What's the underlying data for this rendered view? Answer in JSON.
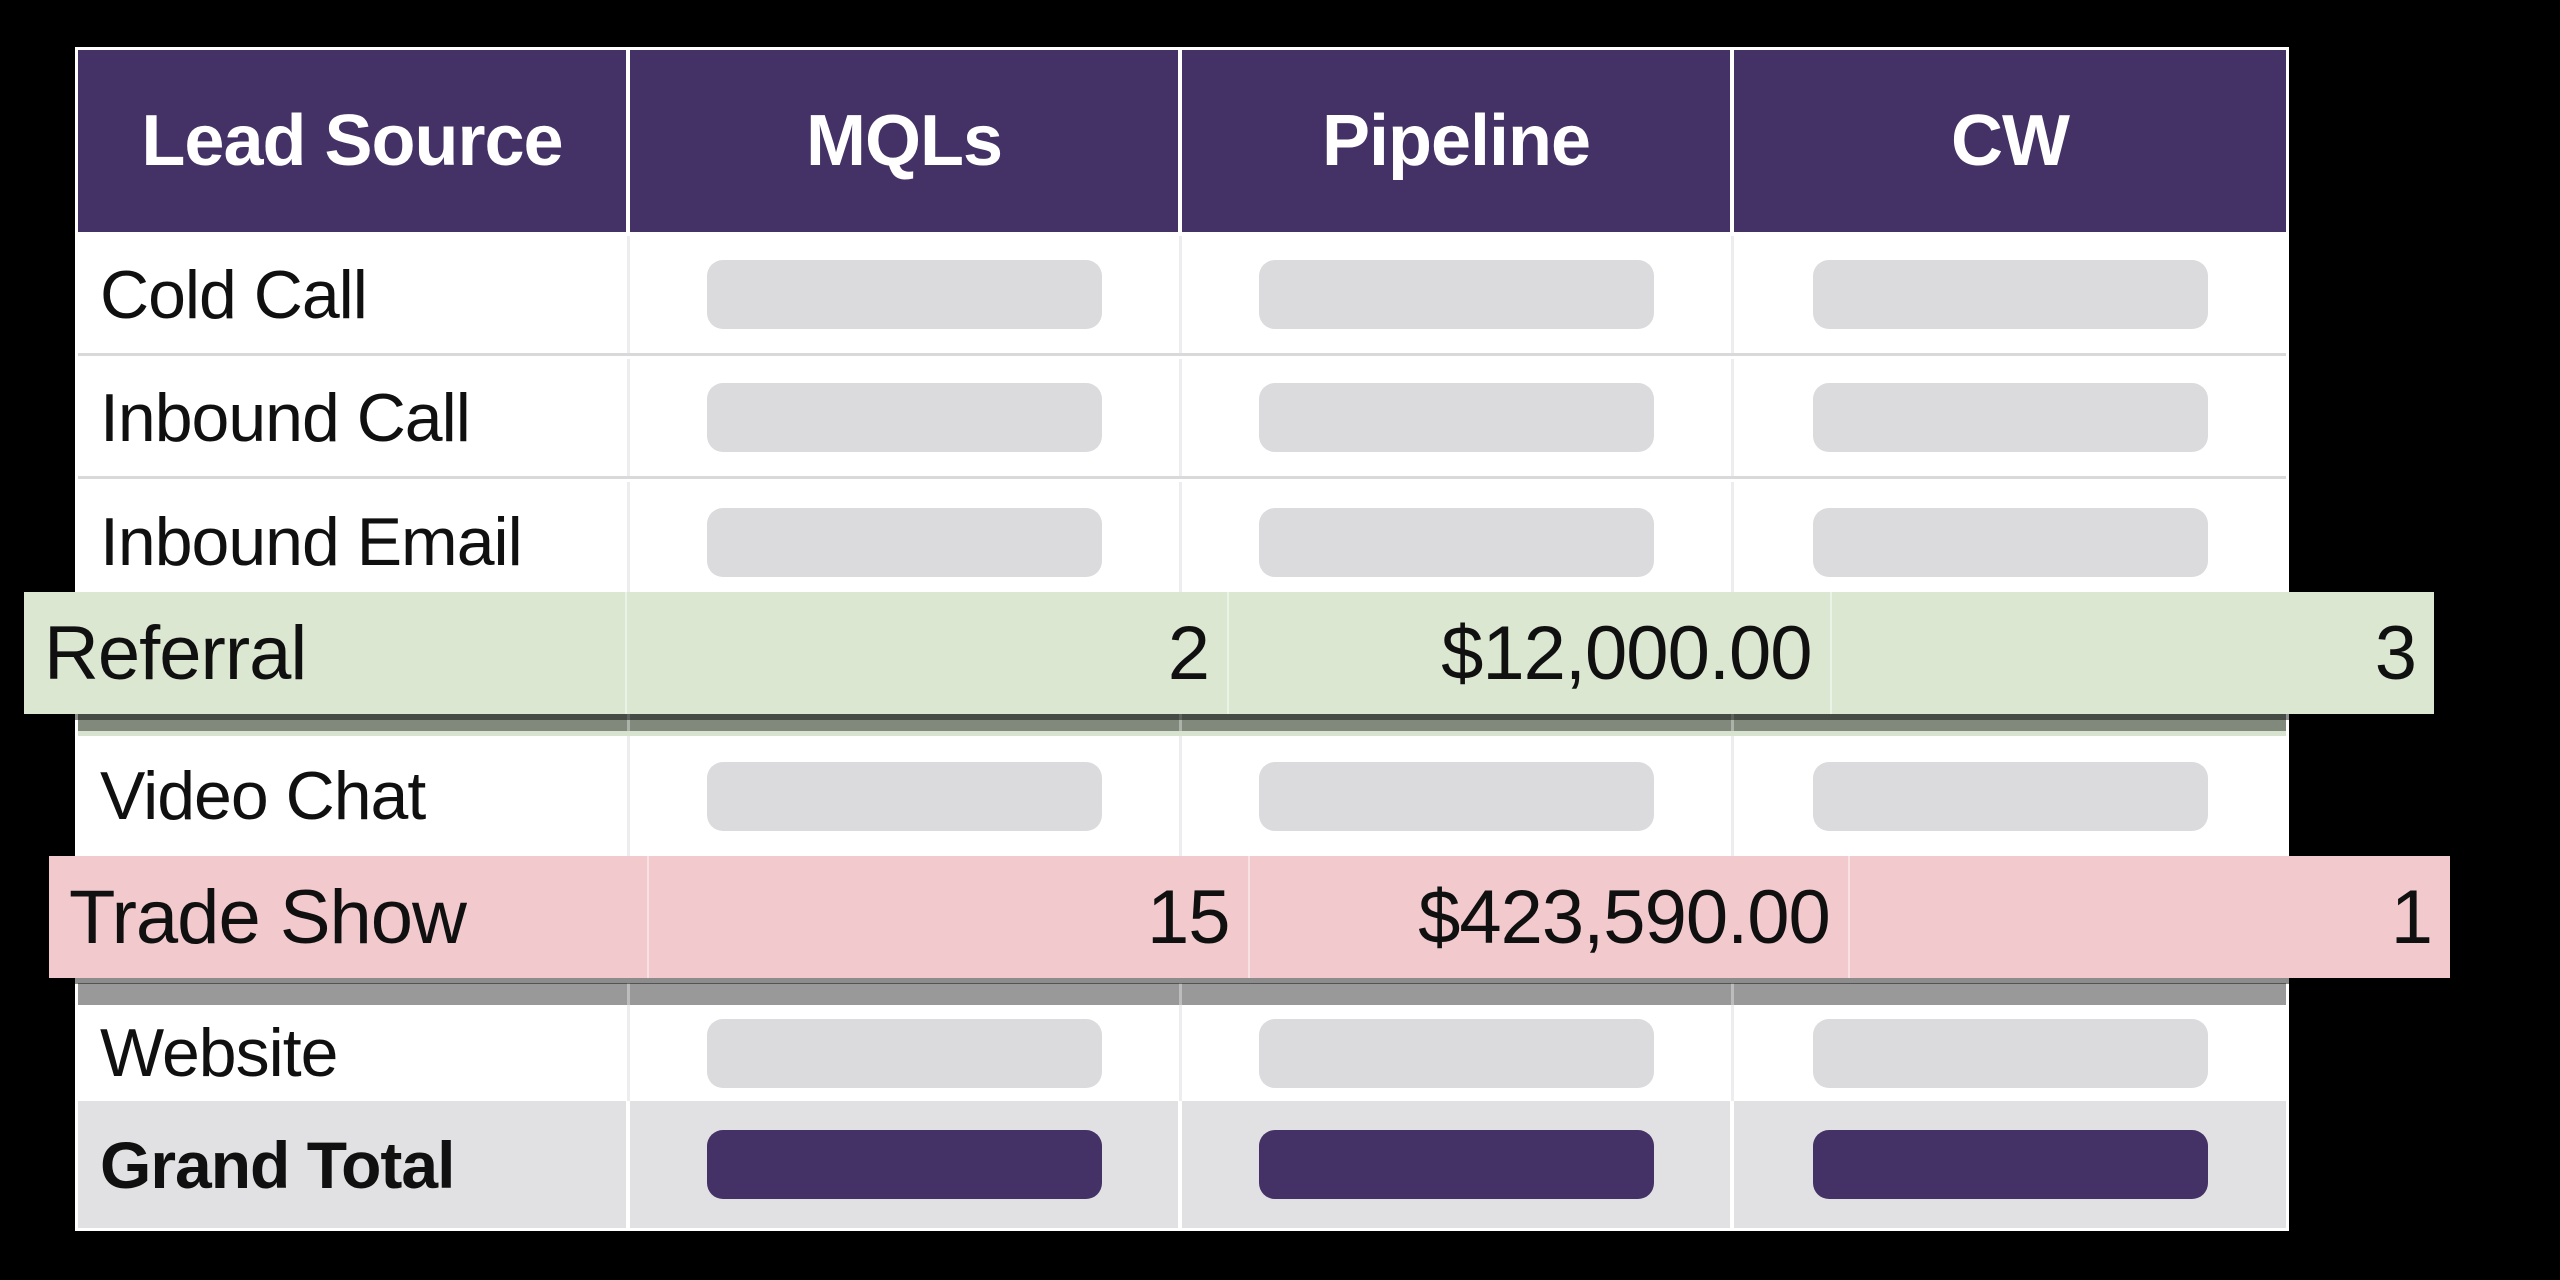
{
  "table": {
    "columns": [
      {
        "label": "Lead Source"
      },
      {
        "label": "MQLs"
      },
      {
        "label": "Pipeline"
      },
      {
        "label": "CW"
      }
    ],
    "rows": [
      {
        "label": "Cold Call"
      },
      {
        "label": "Inbound Call"
      },
      {
        "label": "Inbound Email"
      },
      {
        "label": "Video Chat"
      },
      {
        "label": "Website"
      },
      {
        "label": "Grand Total"
      }
    ],
    "dragged_rows": [
      {
        "label": "Referral",
        "mqls": "2",
        "pipeline": "$12,000.00",
        "cw": "3"
      },
      {
        "label": "Trade Show",
        "mqls": "15",
        "pipeline": "$423,590.00",
        "cw": "1"
      }
    ]
  },
  "colors": {
    "page_background": "#000000",
    "header_bg": "#443266",
    "header_text": "#ffffff",
    "row_bg": "#ffffff",
    "row_separator": "#d9d9d9",
    "placeholder_pill": "#dbdbde",
    "total_row_bg": "#e1e1e4",
    "total_pill": "#443266",
    "referral_row_bg": "#dbe7d1",
    "trade_show_row_bg": "#f2c9cc",
    "referral_shadow_band": "#80897b",
    "trade_show_shadow_band": "#999999"
  },
  "chart_data": {
    "type": "table",
    "title": "",
    "columns": [
      "Lead Source",
      "MQLs",
      "Pipeline",
      "CW"
    ],
    "rows": [
      {
        "lead_source": "Cold Call",
        "mqls": null,
        "pipeline": null,
        "cw": null
      },
      {
        "lead_source": "Inbound Call",
        "mqls": null,
        "pipeline": null,
        "cw": null
      },
      {
        "lead_source": "Inbound Email",
        "mqls": null,
        "pipeline": null,
        "cw": null
      },
      {
        "lead_source": "Referral",
        "mqls": 2,
        "pipeline": "$12,000.00",
        "cw": 3
      },
      {
        "lead_source": "Video Chat",
        "mqls": null,
        "pipeline": null,
        "cw": null
      },
      {
        "lead_source": "Trade Show",
        "mqls": 15,
        "pipeline": "$423,590.00",
        "cw": 1
      },
      {
        "lead_source": "Website",
        "mqls": null,
        "pipeline": null,
        "cw": null
      },
      {
        "lead_source": "Grand Total",
        "mqls": null,
        "pipeline": null,
        "cw": null
      }
    ],
    "notes": "Hidden cells are masked by grey placeholder bars; Grand Total cells masked by purple bars; Referral and Trade Show rows are lifted/highlighted overlays."
  }
}
